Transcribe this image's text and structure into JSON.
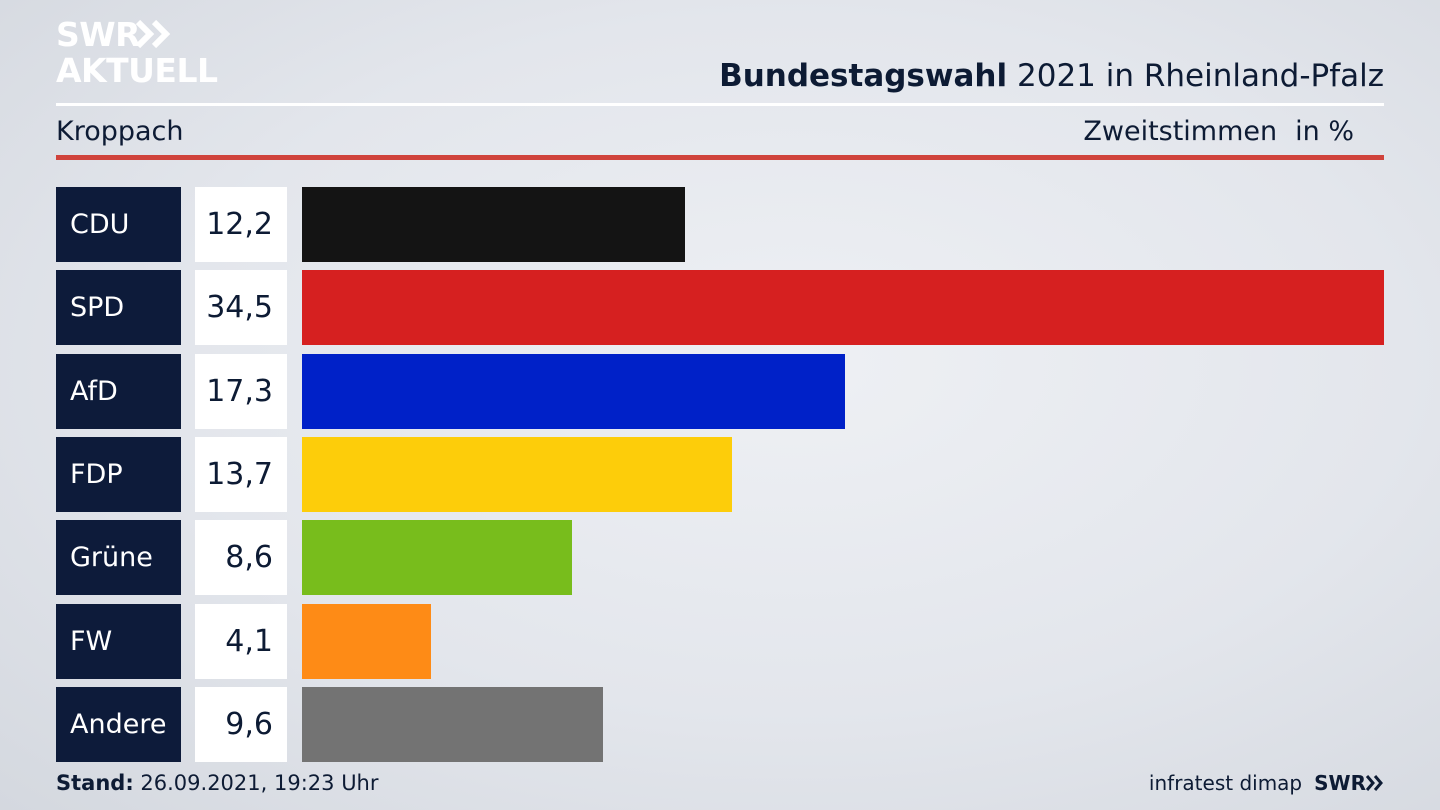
{
  "header": {
    "logo_line1": "SWR",
    "logo_line2": "AKTUELL",
    "title_strong": "Bundestagswahl",
    "title_rest": "2021 in Rheinland-Pfalz",
    "location": "Kroppach",
    "measure_label": "Zweitstimmen",
    "measure_unit": "in %"
  },
  "chart_data": {
    "type": "bar",
    "orientation": "horizontal",
    "categories": [
      "CDU",
      "SPD",
      "AfD",
      "FDP",
      "Grüne",
      "FW",
      "Andere"
    ],
    "values": [
      12.2,
      34.5,
      17.3,
      13.7,
      8.6,
      4.1,
      9.6
    ],
    "value_labels": [
      "12,2",
      "34,5",
      "17,3",
      "13,7",
      "8,6",
      "4,1",
      "9,6"
    ],
    "colors": [
      "#141414",
      "#d62020",
      "#0021c8",
      "#fdcd0a",
      "#78bd1c",
      "#fe8b16",
      "#737373"
    ],
    "xlim": [
      0,
      34.5
    ]
  },
  "footer": {
    "stand_label": "Stand:",
    "stand_value": "26.09.2021, 19:23 Uhr",
    "source": "infratest dimap",
    "brand": "SWR"
  },
  "colors": {
    "label_bg": "#0d1b3a",
    "accent_red": "#d0433c",
    "text_dark": "#0d1b34"
  }
}
